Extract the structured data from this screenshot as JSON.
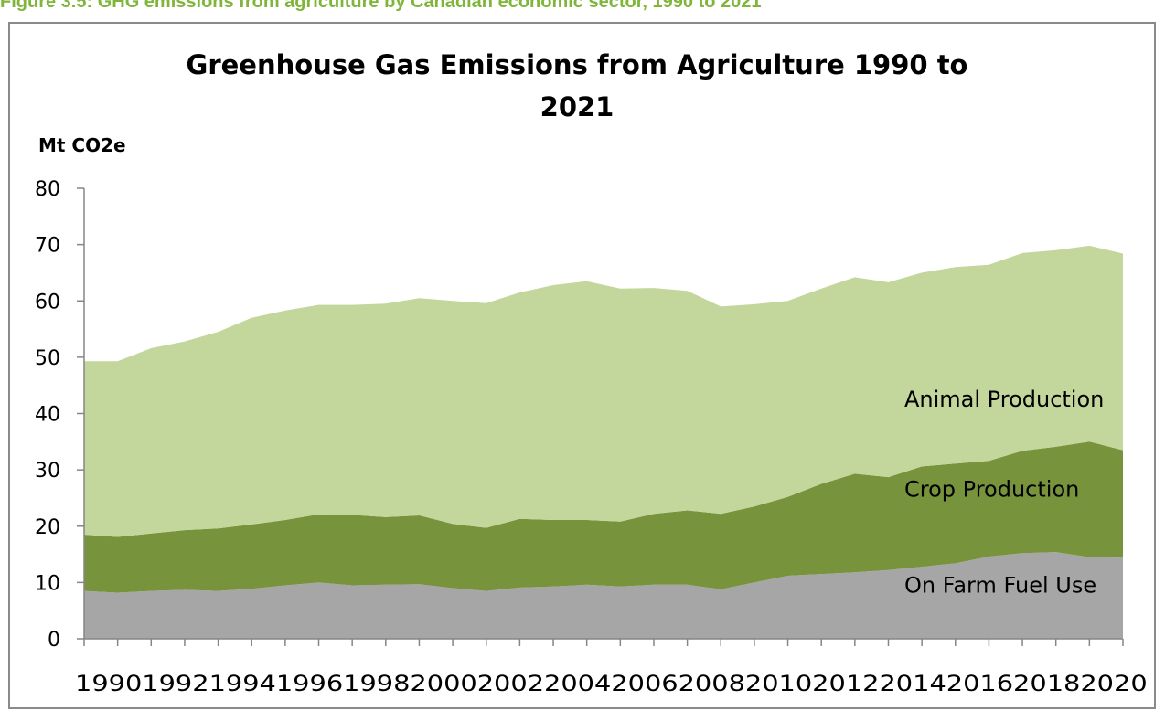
{
  "figure_caption": "Figure 3.5: GHG emissions from agriculture by Canadian economic sector, 1990 to 2021",
  "colors": {
    "caption": "#7fb53a",
    "on_farm_fuel_use": "#a6a6a6",
    "crop_production": "#77933c",
    "animal_production": "#c3d69b",
    "axis": "#868686"
  },
  "chart_data": {
    "type": "area",
    "stacked": true,
    "title_line1": "Greenhouse Gas Emissions from Agriculture 1990 to",
    "title_line2": "2021",
    "ylabel": "Mt CO2e",
    "xlabel": "",
    "ylim": [
      0,
      80
    ],
    "yticks": [
      "0",
      "10",
      "20",
      "30",
      "40",
      "50",
      "60",
      "70",
      "80"
    ],
    "grid": false,
    "legend": "inline labels",
    "x": [
      1990,
      1991,
      1992,
      1993,
      1994,
      1995,
      1996,
      1997,
      1998,
      1999,
      2000,
      2001,
      2002,
      2003,
      2004,
      2005,
      2006,
      2007,
      2008,
      2009,
      2010,
      2011,
      2012,
      2013,
      2014,
      2015,
      2016,
      2017,
      2018,
      2019,
      2020,
      2021
    ],
    "xtick_labels": [
      "1990",
      "1992",
      "1994",
      "1996",
      "1998",
      "2000",
      "2002",
      "2004",
      "2006",
      "2008",
      "2010",
      "2012",
      "2014",
      "2016",
      "2018",
      "2020"
    ],
    "series": [
      {
        "name": "On Farm Fuel Use",
        "values": [
          8.5,
          8.2,
          8.5,
          8.7,
          8.5,
          8.9,
          9.5,
          10.0,
          9.5,
          9.6,
          9.7,
          9.0,
          8.5,
          9.1,
          9.3,
          9.6,
          9.3,
          9.6,
          9.6,
          8.8,
          10.0,
          11.2,
          11.5,
          11.8,
          12.2,
          12.8,
          13.4,
          14.6,
          15.2,
          15.4,
          14.5,
          14.4
        ]
      },
      {
        "name": "Crop Production",
        "values": [
          10.0,
          9.9,
          10.2,
          10.6,
          11.1,
          11.4,
          11.6,
          12.1,
          12.5,
          12.0,
          12.2,
          11.4,
          11.2,
          12.2,
          11.8,
          11.5,
          11.5,
          12.6,
          13.2,
          13.4,
          13.5,
          14.0,
          16.0,
          17.5,
          16.5,
          17.8,
          17.7,
          17.0,
          18.2,
          18.7,
          20.5,
          19.1
        ]
      },
      {
        "name": "Animal Production",
        "values": [
          30.8,
          31.2,
          32.9,
          33.5,
          34.9,
          36.7,
          37.2,
          37.2,
          37.3,
          37.9,
          38.6,
          39.6,
          39.9,
          40.2,
          41.7,
          42.4,
          41.4,
          40.1,
          39.0,
          36.8,
          35.9,
          34.8,
          34.7,
          34.9,
          34.6,
          34.4,
          34.9,
          34.8,
          35.1,
          34.9,
          34.8,
          34.9
        ]
      }
    ]
  }
}
